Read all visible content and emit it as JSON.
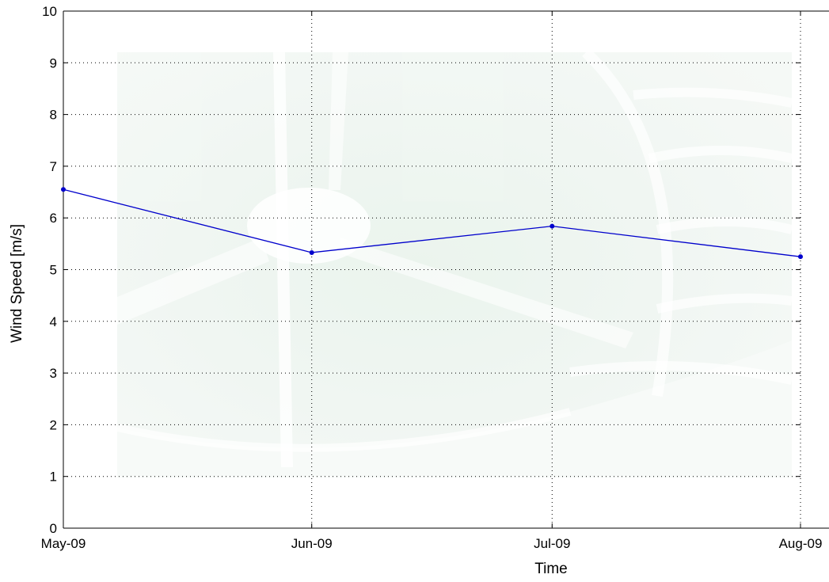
{
  "chart_data": {
    "type": "line",
    "title": "",
    "xlabel": "Time",
    "ylabel": "Wind Speed [m/s]",
    "categories": [
      "May-09",
      "Jun-09",
      "Jul-09",
      "Aug-09"
    ],
    "x_dates": [
      "2009-05-01",
      "2009-06-01",
      "2009-07-01",
      "2009-08-01"
    ],
    "series": [
      {
        "values": [
          6.55,
          5.33,
          5.84,
          5.25
        ],
        "color": "#0000cc",
        "marker": "dot"
      }
    ],
    "ylim": [
      0,
      10
    ],
    "yticks": [
      "0",
      "1",
      "2",
      "3",
      "4",
      "5",
      "6",
      "7",
      "8",
      "9",
      "10"
    ],
    "grid": true,
    "watermark": true,
    "background_color": "#ffffff"
  }
}
